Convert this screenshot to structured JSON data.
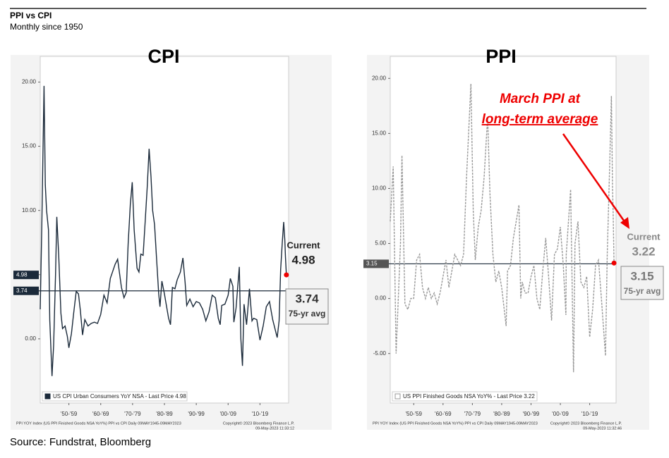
{
  "header": {
    "title": "PPI vs CPI",
    "subtitle": "Monthly since 1950"
  },
  "source": "Source: Fundstrat, Bloomberg",
  "chart_data": [
    {
      "type": "line",
      "title": "CPI",
      "x": [
        1946.0,
        1946.5,
        1947.2,
        1947.6,
        1948.0,
        1948.6,
        1949.0,
        1949.7,
        1950.2,
        1950.8,
        1951.2,
        1951.8,
        1952.5,
        1953.0,
        1953.8,
        1954.5,
        1955.0,
        1955.8,
        1956.5,
        1957.3,
        1958.0,
        1958.6,
        1959.3,
        1960,
        1961,
        1962,
        1963,
        1964,
        1965,
        1966,
        1967,
        1968,
        1969.5,
        1970.3,
        1971.5,
        1972.3,
        1973.0,
        1973.6,
        1974.3,
        1974.9,
        1975.5,
        1976.4,
        1977.0,
        1977.6,
        1978.3,
        1979.0,
        1979.6,
        1980.2,
        1980.8,
        1981.3,
        1981.9,
        1982.5,
        1983.2,
        1983.6,
        1984.2,
        1985,
        1986.3,
        1986.9,
        1987.5,
        1988.3,
        1989,
        1990,
        1990.8,
        1991.5,
        1992,
        1993,
        1994,
        1995,
        1996,
        1997,
        1998,
        1999,
        2000,
        2001,
        2001.9,
        2002.5,
        2003,
        2004,
        2005,
        2005.7,
        2006.5,
        2006.8,
        2007.5,
        2008.5,
        2009.0,
        2009.5,
        2010.0,
        2010.8,
        2011.7,
        2012.5,
        2013,
        2014,
        2015,
        2016,
        2017,
        2018,
        2019,
        2020.4,
        2021.0,
        2021.5,
        2022.0,
        2022.45,
        2022.8,
        2023.0,
        2023.3
      ],
      "series": [
        {
          "name": "US CPI Urban Consumers YoY NSA - Last Price 4.98",
          "color": "#1b2a3a",
          "dash": false,
          "values": [
            2.3,
            9.0,
            19.7,
            12,
            10,
            8.5,
            1.5,
            -2.9,
            -0.5,
            5,
            9.5,
            6.5,
            2,
            0.8,
            1,
            0.2,
            -0.7,
            0.4,
            2,
            3.7,
            3.5,
            2.2,
            0.3,
            1.5,
            1.0,
            1.2,
            1.3,
            1.2,
            1.9,
            3.4,
            2.8,
            4.7,
            5.8,
            6.2,
            4,
            3.2,
            3.6,
            7.4,
            10.5,
            12.2,
            8.5,
            5.5,
            5.2,
            6.6,
            6.5,
            9.3,
            11.8,
            14.8,
            12.6,
            10,
            8.9,
            6.4,
            3.5,
            2.5,
            4.5,
            3.5,
            1.6,
            1.1,
            4,
            3.9,
            4.6,
            5.2,
            6.3,
            4.4,
            2.6,
            3.1,
            2.5,
            2.9,
            2.8,
            2.3,
            1.4,
            2.1,
            3.4,
            3.2,
            1.6,
            1.1,
            2.6,
            2.7,
            3.4,
            4.7,
            4.1,
            1.3,
            2.4,
            5.6,
            0,
            -2.1,
            2.7,
            1.1,
            3.9,
            1.4,
            1.6,
            1.5,
            -0.1,
            1.0,
            2.5,
            2.9,
            1.5,
            0.1,
            1.4,
            5.4,
            7.5,
            9.1,
            7.7,
            6.4,
            4.98
          ]
        }
      ],
      "xlim": [
        1946,
        2024
      ],
      "ylim": [
        -5,
        22
      ],
      "xticks": [
        {
          "value": 1955,
          "label": "'50-'59"
        },
        {
          "value": 1965,
          "label": "'60-'69"
        },
        {
          "value": 1975,
          "label": "'70-'79"
        },
        {
          "value": 1985,
          "label": "'80-'89"
        },
        {
          "value": 1995,
          "label": "'90-'99"
        },
        {
          "value": 2005,
          "label": "'00-'09"
        },
        {
          "value": 2015,
          "label": "'10-'19"
        }
      ],
      "yticks": [
        {
          "value": 0,
          "label": "0.00"
        },
        {
          "value": 5,
          "label": "5.00"
        },
        {
          "value": 10,
          "label": "10.00"
        },
        {
          "value": 15,
          "label": "15.00"
        },
        {
          "value": 20,
          "label": "20.00"
        }
      ],
      "current": {
        "label": "Current",
        "value": 4.98
      },
      "average": {
        "label": "75-yr avg",
        "value": 3.74
      },
      "footer": [
        "PPI YOY Index (US PPI Finished Goods NSA YoY%) PPI vs CPI  Daily 09MAY1945-09MAY2023",
        "Copyright© 2023 Bloomberg Finance L.P.",
        "09-May-2023 11:33:12"
      ]
    },
    {
      "type": "line",
      "title": "PPI",
      "x": [
        1947,
        1948,
        1949,
        1950.5,
        1951,
        1952,
        1953,
        1954,
        1955,
        1956,
        1957,
        1958,
        1959,
        1960,
        1961,
        1962,
        1963,
        1964,
        1965,
        1966,
        1967,
        1968,
        1969,
        1970,
        1971,
        1972,
        1973,
        1974.5,
        1975.3,
        1976,
        1977,
        1978,
        1979,
        1980.2,
        1981,
        1982,
        1983,
        1984,
        1985,
        1986.5,
        1987,
        1988,
        1989,
        1990.9,
        1991.5,
        1992,
        1993,
        1994,
        1995,
        1996,
        1997,
        1998,
        1999,
        2000,
        2001,
        2002,
        2003,
        2004,
        2005,
        2006,
        2006.9,
        2007,
        2008.5,
        2009.5,
        2010,
        2011,
        2012,
        2013,
        2014,
        2015,
        2016,
        2017,
        2018,
        2019,
        2020.4,
        2021,
        2021.8,
        2022.4,
        2022.8,
        2023.0,
        2023.3
      ],
      "series": [
        {
          "name": "US PPI Finished Goods NSA YoY% - Last Price 3.22",
          "color": "#999999",
          "dash": true,
          "values": [
            7,
            12,
            -5,
            5,
            13,
            -0.5,
            -1,
            0,
            0,
            3.5,
            4,
            1,
            0,
            1,
            0,
            0.5,
            -0.5,
            0.5,
            2,
            3.5,
            1,
            2.5,
            4,
            3.5,
            3,
            4,
            11,
            19.5,
            8,
            3.5,
            6.5,
            8,
            11,
            16.5,
            9.5,
            4,
            1.5,
            2.5,
            1,
            -2.5,
            2.5,
            3,
            5.5,
            8.5,
            0,
            1.5,
            0.5,
            0.5,
            2,
            3,
            0,
            -1,
            2.5,
            5.5,
            2,
            -2,
            4,
            4.5,
            6.5,
            3,
            -1.5,
            4,
            9.9,
            -6.7,
            5,
            7,
            1.5,
            1,
            2,
            -3.5,
            -1,
            3,
            3.5,
            0,
            -5.2,
            4,
            12,
            18.4,
            10,
            8,
            3.22
          ]
        }
      ],
      "xlim": [
        1947,
        2024
      ],
      "ylim": [
        -9.5,
        22
      ],
      "xticks": [
        {
          "value": 1955,
          "label": "'50-'59"
        },
        {
          "value": 1965,
          "label": "'60-'69"
        },
        {
          "value": 1975,
          "label": "'70-'79"
        },
        {
          "value": 1985,
          "label": "'80-'89"
        },
        {
          "value": 1995,
          "label": "'90-'99"
        },
        {
          "value": 2005,
          "label": "'00-'09"
        },
        {
          "value": 2015,
          "label": "'10-'19"
        }
      ],
      "yticks": [
        {
          "value": -5,
          "label": "-5.00"
        },
        {
          "value": 0,
          "label": "0.00"
        },
        {
          "value": 5,
          "label": "5.00"
        },
        {
          "value": 10,
          "label": "10.00"
        },
        {
          "value": 15,
          "label": "15.00"
        },
        {
          "value": 20,
          "label": "20.00"
        }
      ],
      "current": {
        "label": "Current",
        "value": 3.22
      },
      "average": {
        "label": "75-yr avg",
        "value": 3.15
      },
      "annotation": [
        "March PPI at",
        "long-term average"
      ],
      "footer": [
        "PPI YOY Index (US PPI Finished Goods NSA YoY%) PPI vs CPI  Daily 09MAY1945-09MAY2023",
        "Copyright© 2023 Bloomberg Finance L.P.",
        "09-May-2023 11:32:46"
      ]
    }
  ]
}
